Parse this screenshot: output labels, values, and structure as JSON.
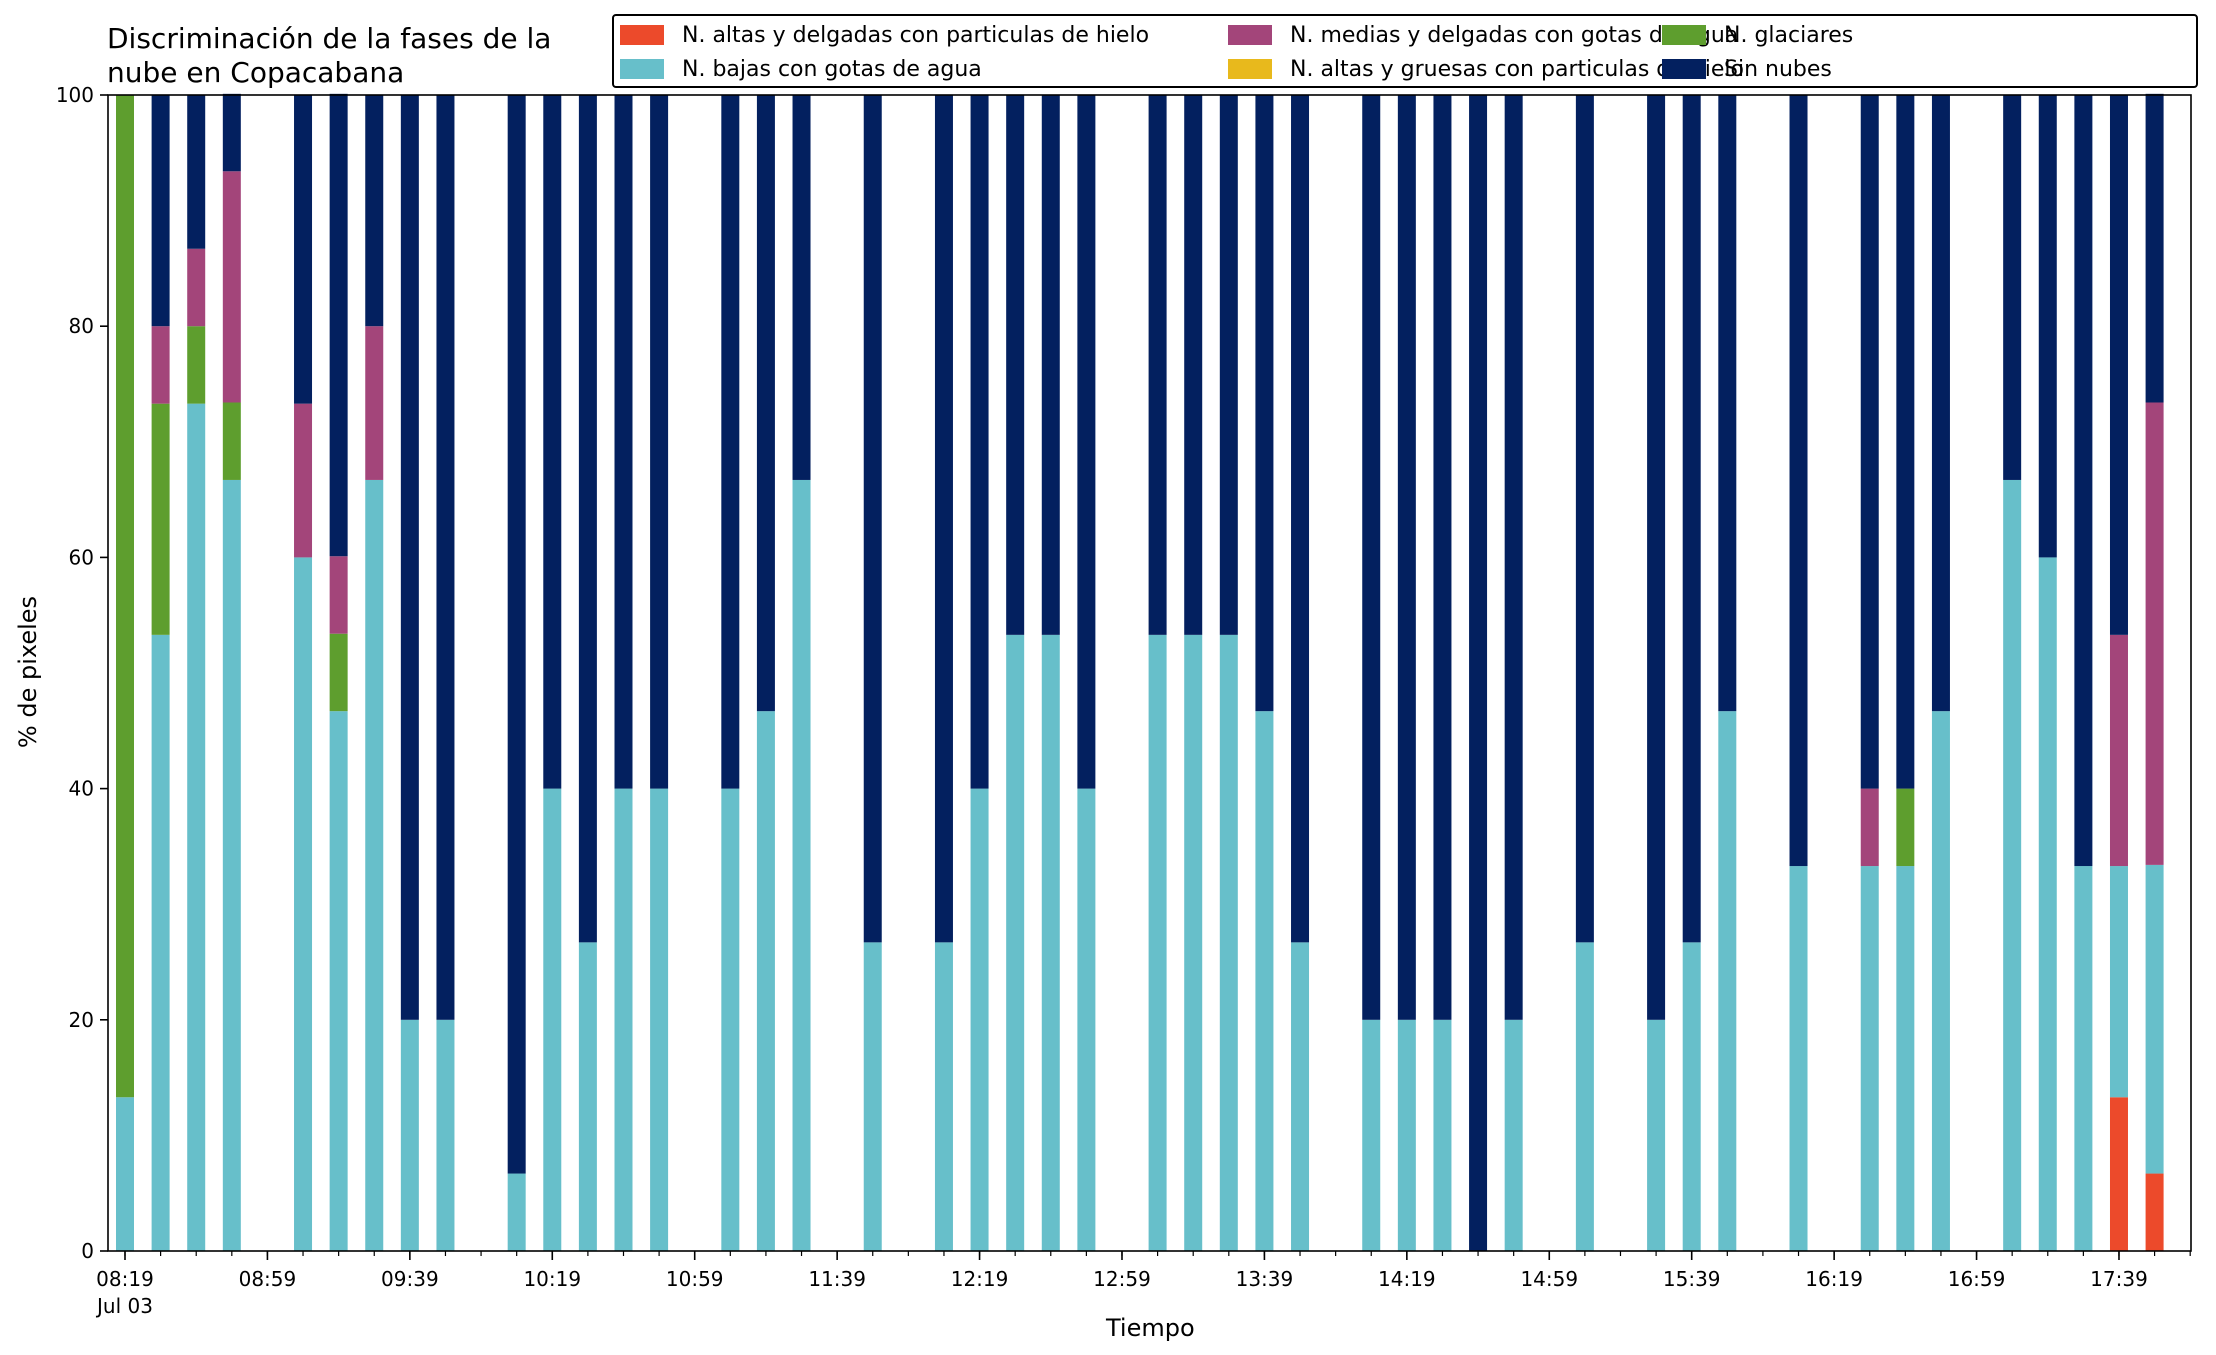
{
  "chart_data": {
    "type": "bar",
    "stacked": true,
    "title_lines": [
      "Discriminación de la fases de la",
      "nube en Copacabana"
    ],
    "xlabel": "Tiempo",
    "ylabel": "% de pixeles",
    "ylim": [
      0,
      100
    ],
    "yticks": [
      "0",
      "20",
      "40",
      "60",
      "80",
      "100"
    ],
    "xlim": [
      0,
      58.5
    ],
    "major_ticks": [
      {
        "pos": 0,
        "label": "08:19",
        "sublabel": "Jul 03"
      },
      {
        "pos": 4,
        "label": "08:59"
      },
      {
        "pos": 8,
        "label": "09:39"
      },
      {
        "pos": 12,
        "label": "10:19"
      },
      {
        "pos": 16,
        "label": "10:59"
      },
      {
        "pos": 20,
        "label": "11:39"
      },
      {
        "pos": 24,
        "label": "12:19"
      },
      {
        "pos": 28,
        "label": "12:59"
      },
      {
        "pos": 32,
        "label": "13:39"
      },
      {
        "pos": 36,
        "label": "14:19"
      },
      {
        "pos": 40,
        "label": "14:59"
      },
      {
        "pos": 44,
        "label": "15:39"
      },
      {
        "pos": 48,
        "label": "16:19"
      },
      {
        "pos": 52,
        "label": "16:59"
      },
      {
        "pos": 56,
        "label": "17:39"
      }
    ],
    "minor_every": 1,
    "legend_location": "top-right",
    "series": [
      {
        "key": "altas_delgadas",
        "name": "N. altas y delgadas con particulas de hielo",
        "color": "#ec4a2b"
      },
      {
        "key": "altas_gruesas",
        "name": "N. altas y gruesas con particulas de hielo",
        "color": "#e8b91c"
      },
      {
        "key": "glaciares",
        "name": "N. glaciares",
        "color": "#5e9e2e"
      },
      {
        "key": "bajas",
        "name": "N. bajas con gotas de agua",
        "color": "#67bfca"
      },
      {
        "key": "medias",
        "name": "N. medias y delgadas con gotas de agua",
        "color": "#a3457a"
      },
      {
        "key": "sin_nubes",
        "name": "Sin nubes",
        "color": "#03205f"
      }
    ],
    "legend_order": [
      "altas_delgadas",
      "bajas",
      "medias",
      "altas_gruesas",
      "glaciares",
      "sin_nubes"
    ],
    "bars": [
      {
        "pos": 0,
        "altas_delgadas": 0,
        "altas_gruesas": 0,
        "bajas": 13.3,
        "glaciares": 86.7,
        "medias": 0,
        "sin_nubes": 0
      },
      {
        "pos": 1,
        "altas_delgadas": 0,
        "altas_gruesas": 0,
        "bajas": 53.3,
        "glaciares": 20,
        "medias": 6.7,
        "sin_nubes": 20
      },
      {
        "pos": 2,
        "altas_delgadas": 0,
        "altas_gruesas": 0,
        "bajas": 73.3,
        "glaciares": 6.7,
        "medias": 6.7,
        "sin_nubes": 13.3
      },
      {
        "pos": 3,
        "altas_delgadas": 0,
        "altas_gruesas": 0,
        "bajas": 66.7,
        "glaciares": 6.7,
        "medias": 20,
        "sin_nubes": 6.7
      },
      {
        "pos": 5,
        "altas_delgadas": 0,
        "altas_gruesas": 0,
        "bajas": 60,
        "glaciares": 0,
        "medias": 13.3,
        "sin_nubes": 26.7
      },
      {
        "pos": 6,
        "altas_delgadas": 0,
        "altas_gruesas": 0,
        "bajas": 46.7,
        "glaciares": 6.7,
        "medias": 6.7,
        "sin_nubes": 40
      },
      {
        "pos": 7,
        "altas_delgadas": 0,
        "altas_gruesas": 0,
        "bajas": 66.7,
        "glaciares": 0,
        "medias": 13.3,
        "sin_nubes": 20
      },
      {
        "pos": 8,
        "altas_delgadas": 0,
        "altas_gruesas": 0,
        "bajas": 20,
        "glaciares": 0,
        "medias": 0,
        "sin_nubes": 80
      },
      {
        "pos": 9,
        "altas_delgadas": 0,
        "altas_gruesas": 0,
        "bajas": 20,
        "glaciares": 0,
        "medias": 0,
        "sin_nubes": 80
      },
      {
        "pos": 11,
        "altas_delgadas": 0,
        "altas_gruesas": 0,
        "bajas": 6.7,
        "glaciares": 0,
        "medias": 0,
        "sin_nubes": 93.3
      },
      {
        "pos": 12,
        "altas_delgadas": 0,
        "altas_gruesas": 0,
        "bajas": 40,
        "glaciares": 0,
        "medias": 0,
        "sin_nubes": 60
      },
      {
        "pos": 13,
        "altas_delgadas": 0,
        "altas_gruesas": 0,
        "bajas": 26.7,
        "glaciares": 0,
        "medias": 0,
        "sin_nubes": 73.3
      },
      {
        "pos": 14,
        "altas_delgadas": 0,
        "altas_gruesas": 0,
        "bajas": 40,
        "glaciares": 0,
        "medias": 0,
        "sin_nubes": 60
      },
      {
        "pos": 15,
        "altas_delgadas": 0,
        "altas_gruesas": 0,
        "bajas": 40,
        "glaciares": 0,
        "medias": 0,
        "sin_nubes": 60
      },
      {
        "pos": 17,
        "altas_delgadas": 0,
        "altas_gruesas": 0,
        "bajas": 40,
        "glaciares": 0,
        "medias": 0,
        "sin_nubes": 60
      },
      {
        "pos": 18,
        "altas_delgadas": 0,
        "altas_gruesas": 0,
        "bajas": 46.7,
        "glaciares": 0,
        "medias": 0,
        "sin_nubes": 53.3
      },
      {
        "pos": 19,
        "altas_delgadas": 0,
        "altas_gruesas": 0,
        "bajas": 66.7,
        "glaciares": 0,
        "medias": 0,
        "sin_nubes": 33.3
      },
      {
        "pos": 21,
        "altas_delgadas": 0,
        "altas_gruesas": 0,
        "bajas": 26.7,
        "glaciares": 0,
        "medias": 0,
        "sin_nubes": 73.3
      },
      {
        "pos": 23,
        "altas_delgadas": 0,
        "altas_gruesas": 0,
        "bajas": 26.7,
        "glaciares": 0,
        "medias": 0,
        "sin_nubes": 73.3
      },
      {
        "pos": 24,
        "altas_delgadas": 0,
        "altas_gruesas": 0,
        "bajas": 40,
        "glaciares": 0,
        "medias": 0,
        "sin_nubes": 60
      },
      {
        "pos": 25,
        "altas_delgadas": 0,
        "altas_gruesas": 0,
        "bajas": 53.3,
        "glaciares": 0,
        "medias": 0,
        "sin_nubes": 46.7
      },
      {
        "pos": 26,
        "altas_delgadas": 0,
        "altas_gruesas": 0,
        "bajas": 53.3,
        "glaciares": 0,
        "medias": 0,
        "sin_nubes": 46.7
      },
      {
        "pos": 27,
        "altas_delgadas": 0,
        "altas_gruesas": 0,
        "bajas": 40,
        "glaciares": 0,
        "medias": 0,
        "sin_nubes": 60
      },
      {
        "pos": 29,
        "altas_delgadas": 0,
        "altas_gruesas": 0,
        "bajas": 53.3,
        "glaciares": 0,
        "medias": 0,
        "sin_nubes": 46.7
      },
      {
        "pos": 30,
        "altas_delgadas": 0,
        "altas_gruesas": 0,
        "bajas": 53.3,
        "glaciares": 0,
        "medias": 0,
        "sin_nubes": 46.7
      },
      {
        "pos": 31,
        "altas_delgadas": 0,
        "altas_gruesas": 0,
        "bajas": 53.3,
        "glaciares": 0,
        "medias": 0,
        "sin_nubes": 46.7
      },
      {
        "pos": 32,
        "altas_delgadas": 0,
        "altas_gruesas": 0,
        "bajas": 46.7,
        "glaciares": 0,
        "medias": 0,
        "sin_nubes": 53.3
      },
      {
        "pos": 33,
        "altas_delgadas": 0,
        "altas_gruesas": 0,
        "bajas": 26.7,
        "glaciares": 0,
        "medias": 0,
        "sin_nubes": 73.3
      },
      {
        "pos": 35,
        "altas_delgadas": 0,
        "altas_gruesas": 0,
        "bajas": 20,
        "glaciares": 0,
        "medias": 0,
        "sin_nubes": 80
      },
      {
        "pos": 36,
        "altas_delgadas": 0,
        "altas_gruesas": 0,
        "bajas": 20,
        "glaciares": 0,
        "medias": 0,
        "sin_nubes": 80
      },
      {
        "pos": 37,
        "altas_delgadas": 0,
        "altas_gruesas": 0,
        "bajas": 20,
        "glaciares": 0,
        "medias": 0,
        "sin_nubes": 80
      },
      {
        "pos": 38,
        "altas_delgadas": 0,
        "altas_gruesas": 0,
        "bajas": 0,
        "glaciares": 0,
        "medias": 0,
        "sin_nubes": 100
      },
      {
        "pos": 39,
        "altas_delgadas": 0,
        "altas_gruesas": 0,
        "bajas": 20,
        "glaciares": 0,
        "medias": 0,
        "sin_nubes": 80
      },
      {
        "pos": 41,
        "altas_delgadas": 0,
        "altas_gruesas": 0,
        "bajas": 26.7,
        "glaciares": 0,
        "medias": 0,
        "sin_nubes": 73.3
      },
      {
        "pos": 43,
        "altas_delgadas": 0,
        "altas_gruesas": 0,
        "bajas": 20,
        "glaciares": 0,
        "medias": 0,
        "sin_nubes": 80
      },
      {
        "pos": 44,
        "altas_delgadas": 0,
        "altas_gruesas": 0,
        "bajas": 26.7,
        "glaciares": 0,
        "medias": 0,
        "sin_nubes": 73.3
      },
      {
        "pos": 45,
        "altas_delgadas": 0,
        "altas_gruesas": 0,
        "bajas": 46.7,
        "glaciares": 0,
        "medias": 0,
        "sin_nubes": 53.3
      },
      {
        "pos": 47,
        "altas_delgadas": 0,
        "altas_gruesas": 0,
        "bajas": 33.3,
        "glaciares": 0,
        "medias": 0,
        "sin_nubes": 66.7
      },
      {
        "pos": 49,
        "altas_delgadas": 0,
        "altas_gruesas": 0,
        "bajas": 33.3,
        "glaciares": 0,
        "medias": 6.7,
        "sin_nubes": 60
      },
      {
        "pos": 50,
        "altas_delgadas": 0,
        "altas_gruesas": 0,
        "bajas": 33.3,
        "glaciares": 6.7,
        "medias": 0,
        "sin_nubes": 60
      },
      {
        "pos": 51,
        "altas_delgadas": 0,
        "altas_gruesas": 0,
        "bajas": 46.7,
        "glaciares": 0,
        "medias": 0,
        "sin_nubes": 53.3
      },
      {
        "pos": 53,
        "altas_delgadas": 0,
        "altas_gruesas": 0,
        "bajas": 66.7,
        "glaciares": 0,
        "medias": 0,
        "sin_nubes": 33.3
      },
      {
        "pos": 54,
        "altas_delgadas": 0,
        "altas_gruesas": 0,
        "bajas": 60,
        "glaciares": 0,
        "medias": 0,
        "sin_nubes": 40
      },
      {
        "pos": 55,
        "altas_delgadas": 0,
        "altas_gruesas": 0,
        "bajas": 33.3,
        "glaciares": 0,
        "medias": 0,
        "sin_nubes": 66.7
      },
      {
        "pos": 56,
        "altas_delgadas": 13.3,
        "altas_gruesas": 0,
        "bajas": 20,
        "glaciares": 0,
        "medias": 20,
        "sin_nubes": 46.7
      },
      {
        "pos": 57,
        "altas_delgadas": 6.7,
        "altas_gruesas": 0,
        "bajas": 26.7,
        "glaciares": 0,
        "medias": 40,
        "sin_nubes": 26.7
      }
    ]
  }
}
